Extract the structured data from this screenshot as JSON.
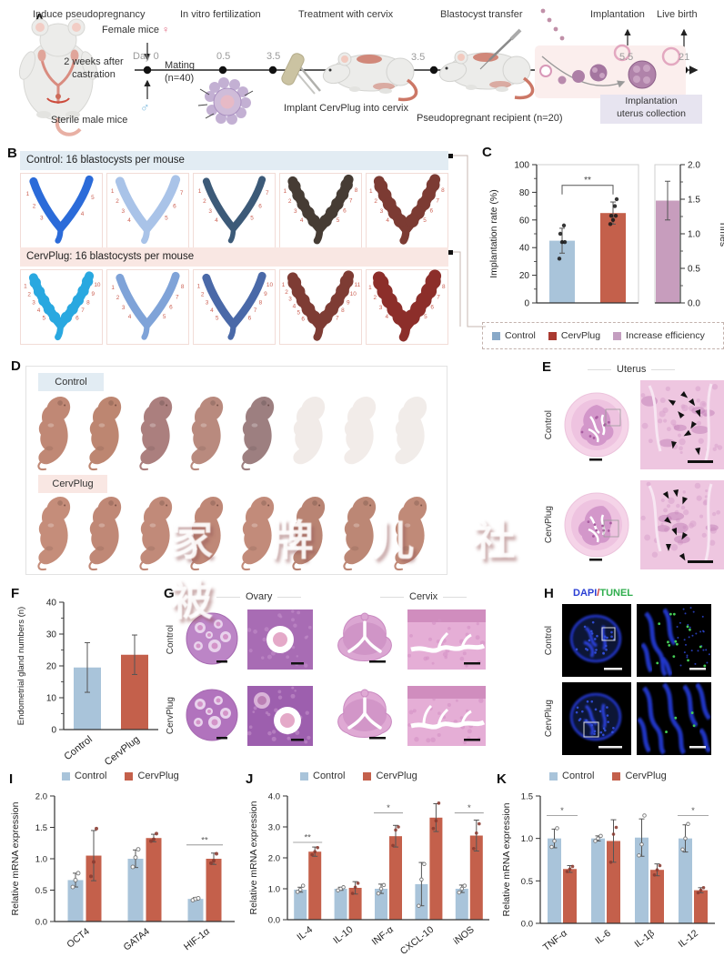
{
  "colors": {
    "control_bar": "#a9c4da",
    "cervplug_bar": "#c4604b",
    "efficiency_bar": "#c79dbd",
    "control_bg": "#e2ecf3",
    "cervplug_bg": "#f9e7e3",
    "lavender_box": "#e7e4f0",
    "legend_control": "#89a9c8",
    "legend_cervplug": "#aa3a31",
    "legend_efficiency": "#c49ec0",
    "site_number": "#cb5f52",
    "dapi_blue": "#2a3fd4",
    "tunel_green": "#2fae4d",
    "female_pink": "#e0607a",
    "male_blue": "#7ab8dc"
  },
  "panelA": {
    "label": "A",
    "steps": [
      "Induce pseudopregnancy",
      "In vitro fertilization",
      "Treatment with cervix",
      "Blastocyst transfer",
      "Implantation",
      "Live birth"
    ],
    "female_mice": "Female mice",
    "female_symbol": "♀",
    "male_symbol": "♂",
    "castration_1": "2 weeks after",
    "castration_2": "castration",
    "day0": "Day 0",
    "mating_1": "Mating",
    "mating_2": "(n=40)",
    "timepoints": {
      "t05": "0.5",
      "t35a": "3.5",
      "t35b": "3.5",
      "t55": "5.5",
      "t21": "21"
    },
    "sterile": "Sterile male mice",
    "implant": "Implant CervPlug into cervix",
    "recipient": "Pseudopregnant recipient (n=20)",
    "collection_1": "Implantation",
    "collection_2": "uterus collection"
  },
  "panelB": {
    "label": "B",
    "control_header": "Control: 16 blastocysts per mouse",
    "cervplug_header": "CervPlug: 16 blastocysts per mouse",
    "control_uteri": [
      {
        "color": "#2b6bd9",
        "width": 9,
        "bumpy": false,
        "sites": 5
      },
      {
        "color": "#a9c3e8",
        "width": 10,
        "bumpy": false,
        "sites": 7
      },
      {
        "color": "#3c5a78",
        "width": 8,
        "bumpy": false,
        "sites": 7
      },
      {
        "color": "#463c34",
        "width": 11,
        "bumpy": true,
        "sites": 8
      },
      {
        "color": "#7c3b33",
        "width": 12,
        "bumpy": true,
        "sites": 8
      }
    ],
    "cervplug_uteri": [
      {
        "color": "#29a8e0",
        "width": 10,
        "bumpy": true,
        "sites": 10
      },
      {
        "color": "#7fa3d8",
        "width": 9,
        "bumpy": false,
        "sites": 8
      },
      {
        "color": "#4a69a8",
        "width": 9,
        "bumpy": false,
        "sites": 10
      },
      {
        "color": "#7e3c34",
        "width": 12,
        "bumpy": true,
        "sites": 11
      },
      {
        "color": "#8c2e2a",
        "width": 14,
        "bumpy": true,
        "sites": 8
      }
    ]
  },
  "panelC": {
    "label": "C",
    "legend": [
      {
        "label": "Control",
        "color": "#89a9c8"
      },
      {
        "label": "CervPlug",
        "color": "#aa3a31"
      },
      {
        "label": "Increase efficiency",
        "color": "#c49ec0"
      }
    ]
  },
  "panelD": {
    "label": "D",
    "control_label": "Control",
    "cervplug_label": "CervPlug",
    "control_pups": [
      {
        "tone": "#c08875",
        "faded": false
      },
      {
        "tone": "#bd8671",
        "faded": false
      },
      {
        "tone": "#ab7f7e",
        "faded": false
      },
      {
        "tone": "#b98a7e",
        "faded": false
      },
      {
        "tone": "#9d7f80",
        "faded": false
      },
      {
        "tone": "#f1ebe8",
        "faded": true
      },
      {
        "tone": "#f2ece9",
        "faded": true
      },
      {
        "tone": "#f1ece9",
        "faded": true
      }
    ],
    "cervplug_pups": [
      {
        "tone": "#c58d7a",
        "faded": false
      },
      {
        "tone": "#c08876",
        "faded": false
      },
      {
        "tone": "#c18a79",
        "faded": false
      },
      {
        "tone": "#bf8877",
        "faded": false
      },
      {
        "tone": "#c28b7a",
        "faded": false
      },
      {
        "tone": "#b98473",
        "faded": false
      },
      {
        "tone": "#bc8775",
        "faded": false
      },
      {
        "tone": "#c08a78",
        "faded": false
      }
    ]
  },
  "watermark": "家 牌 儿 社 被",
  "panelE": {
    "label": "E",
    "title": "Uterus",
    "rows": [
      "Control",
      "CervPlug"
    ]
  },
  "panelF": {
    "label": "F"
  },
  "panelG": {
    "label": "G",
    "col_titles": [
      "Ovary",
      "Cervix"
    ],
    "rows": [
      "Control",
      "CervPlug"
    ]
  },
  "panelH": {
    "label": "H",
    "title_dapi": "DAPI",
    "title_sep": "/",
    "title_tunel": "TUNEL",
    "rows": [
      "Control",
      "CervPlug"
    ]
  },
  "panelI": {
    "label": "I",
    "legend": [
      {
        "label": "Control",
        "color": "#a9c4da"
      },
      {
        "label": "CervPlug",
        "color": "#c4604b"
      }
    ]
  },
  "panelJ": {
    "label": "J",
    "legend": [
      {
        "label": "Control",
        "color": "#a9c4da"
      },
      {
        "label": "CervPlug",
        "color": "#c4604b"
      }
    ]
  },
  "panelK": {
    "label": "K",
    "legend": [
      {
        "label": "Control",
        "color": "#a9c4da"
      },
      {
        "label": "CervPlug",
        "color": "#c4604b"
      }
    ]
  },
  "chart_data": [
    {
      "id": "implantation_rate",
      "type": "bar",
      "ylabel": "Implantation rate (%)",
      "ylim": [
        0,
        100
      ],
      "yticks": [
        "0",
        "20",
        "40",
        "60",
        "80",
        "100"
      ],
      "categories": [
        "Control",
        "CervPlug"
      ],
      "show_xlabels": false,
      "series": [
        {
          "name": "",
          "colors": [
            "#a9c4da",
            "#c4604b"
          ],
          "values": [
            45,
            65
          ],
          "errors": [
            9,
            8
          ],
          "points": [
            [
              32,
              44,
              44,
              50,
              56
            ],
            [
              57,
              60,
              63,
              63,
              70,
              75
            ]
          ]
        }
      ],
      "sigs": [
        {
          "between": [
            0,
            1
          ],
          "label": "**",
          "y": 85
        }
      ]
    },
    {
      "id": "increase_efficiency",
      "type": "bar",
      "ylabel": "Times",
      "ylim": [
        0,
        2
      ],
      "yticks": [
        "0.0",
        "0.5",
        "1.0",
        "1.5",
        "2.0"
      ],
      "categories": [
        "Increase efficiency"
      ],
      "show_xlabels": false,
      "series": [
        {
          "name": "",
          "colors": [
            "#c79dbd"
          ],
          "values": [
            1.48
          ],
          "errors": [
            0.28
          ]
        }
      ]
    },
    {
      "id": "endometrial_glands",
      "type": "bar",
      "ylabel": "Endometrial gland numbers (n)",
      "ylim": [
        0,
        40
      ],
      "yticks": [
        "0",
        "10",
        "20",
        "30",
        "40"
      ],
      "categories": [
        "Control",
        "CervPlug"
      ],
      "show_xlabels": true,
      "series": [
        {
          "name": "",
          "colors": [
            "#a9c4da",
            "#c4604b"
          ],
          "values": [
            19.5,
            23.5
          ],
          "errors": [
            7.8,
            6.2
          ]
        }
      ]
    },
    {
      "id": "mrna_stemness",
      "type": "bar",
      "ylabel": "Relative mRNA expression",
      "ylim": [
        0,
        2
      ],
      "yticks": [
        "0.0",
        "0.5",
        "1.0",
        "1.5",
        "2.0"
      ],
      "categories": [
        "OCT4",
        "GATA4",
        "HIF-1α"
      ],
      "show_xlabels": true,
      "series": [
        {
          "name": "Control",
          "color": "#a9c4da",
          "values": [
            0.66,
            1.0,
            0.36
          ],
          "errors": [
            0.11,
            0.14,
            0.02
          ],
          "points": [
            [
              0.55,
              0.66,
              0.77
            ],
            [
              0.87,
              1.02,
              1.15
            ],
            [
              0.34,
              0.36,
              0.37
            ]
          ]
        },
        {
          "name": "CervPlug",
          "color": "#c4604b",
          "values": [
            1.05,
            1.33,
            1.0
          ],
          "errors": [
            0.4,
            0.06,
            0.09
          ],
          "points": [
            [
              0.72,
              0.95,
              1.48
            ],
            [
              1.28,
              1.31,
              1.4
            ],
            [
              0.93,
              0.97,
              1.08
            ]
          ]
        }
      ],
      "sigs": [
        {
          "cat": 2,
          "label": "**",
          "y": 1.22
        }
      ]
    },
    {
      "id": "mrna_cytokines",
      "type": "bar",
      "ylabel": "Relative mRNA expression",
      "ylim": [
        0,
        4
      ],
      "yticks": [
        "0.0",
        "1.0",
        "2.0",
        "3.0",
        "4.0"
      ],
      "categories": [
        "IL-4",
        "IL-10",
        "INF-α",
        "CXCL-10",
        "iNOS"
      ],
      "show_xlabels": true,
      "series": [
        {
          "name": "Control",
          "color": "#a9c4da",
          "values": [
            0.97,
            1.0,
            1.0,
            1.15,
            1.0
          ],
          "errors": [
            0.08,
            0.05,
            0.15,
            0.7,
            0.12
          ],
          "points": [
            [
              0.9,
              0.97,
              1.1
            ],
            [
              0.95,
              1.0,
              1.05
            ],
            [
              0.85,
              1.0,
              1.12
            ],
            [
              0.45,
              1.3,
              1.8
            ],
            [
              0.88,
              1.0,
              1.1
            ]
          ]
        },
        {
          "name": "CervPlug",
          "color": "#c4604b",
          "values": [
            2.2,
            1.03,
            2.7,
            3.3,
            2.72
          ],
          "errors": [
            0.15,
            0.2,
            0.35,
            0.45,
            0.5
          ],
          "points": [
            [
              2.1,
              2.2,
              2.33
            ],
            [
              0.85,
              1.05,
              1.18
            ],
            [
              2.4,
              2.9,
              3.0
            ],
            [
              2.95,
              3.2,
              3.77
            ],
            [
              2.3,
              2.8,
              3.1
            ]
          ]
        }
      ],
      "sigs": [
        {
          "cat": 0,
          "label": "**",
          "y": 2.5
        },
        {
          "cat": 2,
          "label": "*",
          "y": 3.45
        },
        {
          "cat": 4,
          "label": "*",
          "y": 3.45
        }
      ]
    },
    {
      "id": "mrna_proinflammatory",
      "type": "bar",
      "ylabel": "Relative mRNA expression",
      "ylim": [
        0,
        1.5
      ],
      "yticks": [
        "0.0",
        "0.5",
        "1.0",
        "1.5"
      ],
      "categories": [
        "TNF-α",
        "IL-6",
        "IL-1β",
        "IL-12"
      ],
      "show_xlabels": true,
      "series": [
        {
          "name": "Control",
          "color": "#a9c4da",
          "values": [
            1.0,
            1.0,
            1.01,
            1.0
          ],
          "errors": [
            0.11,
            0.03,
            0.22,
            0.16
          ],
          "points": [
            [
              0.9,
              0.97,
              1.12
            ],
            [
              0.97,
              1.0,
              1.03
            ],
            [
              0.8,
              0.93,
              1.27
            ],
            [
              0.87,
              1.0,
              1.17
            ]
          ]
        },
        {
          "name": "CervPlug",
          "color": "#c4604b",
          "values": [
            0.64,
            0.97,
            0.63,
            0.39
          ],
          "errors": [
            0.04,
            0.25,
            0.07,
            0.03
          ],
          "points": [
            [
              0.61,
              0.64,
              0.67
            ],
            [
              0.72,
              1.05,
              1.13
            ],
            [
              0.57,
              0.63,
              0.68
            ],
            [
              0.36,
              0.39,
              0.42
            ]
          ]
        }
      ],
      "sigs": [
        {
          "cat": 0,
          "label": "*",
          "y": 1.27
        },
        {
          "cat": 3,
          "label": "*",
          "y": 1.27
        }
      ]
    }
  ]
}
